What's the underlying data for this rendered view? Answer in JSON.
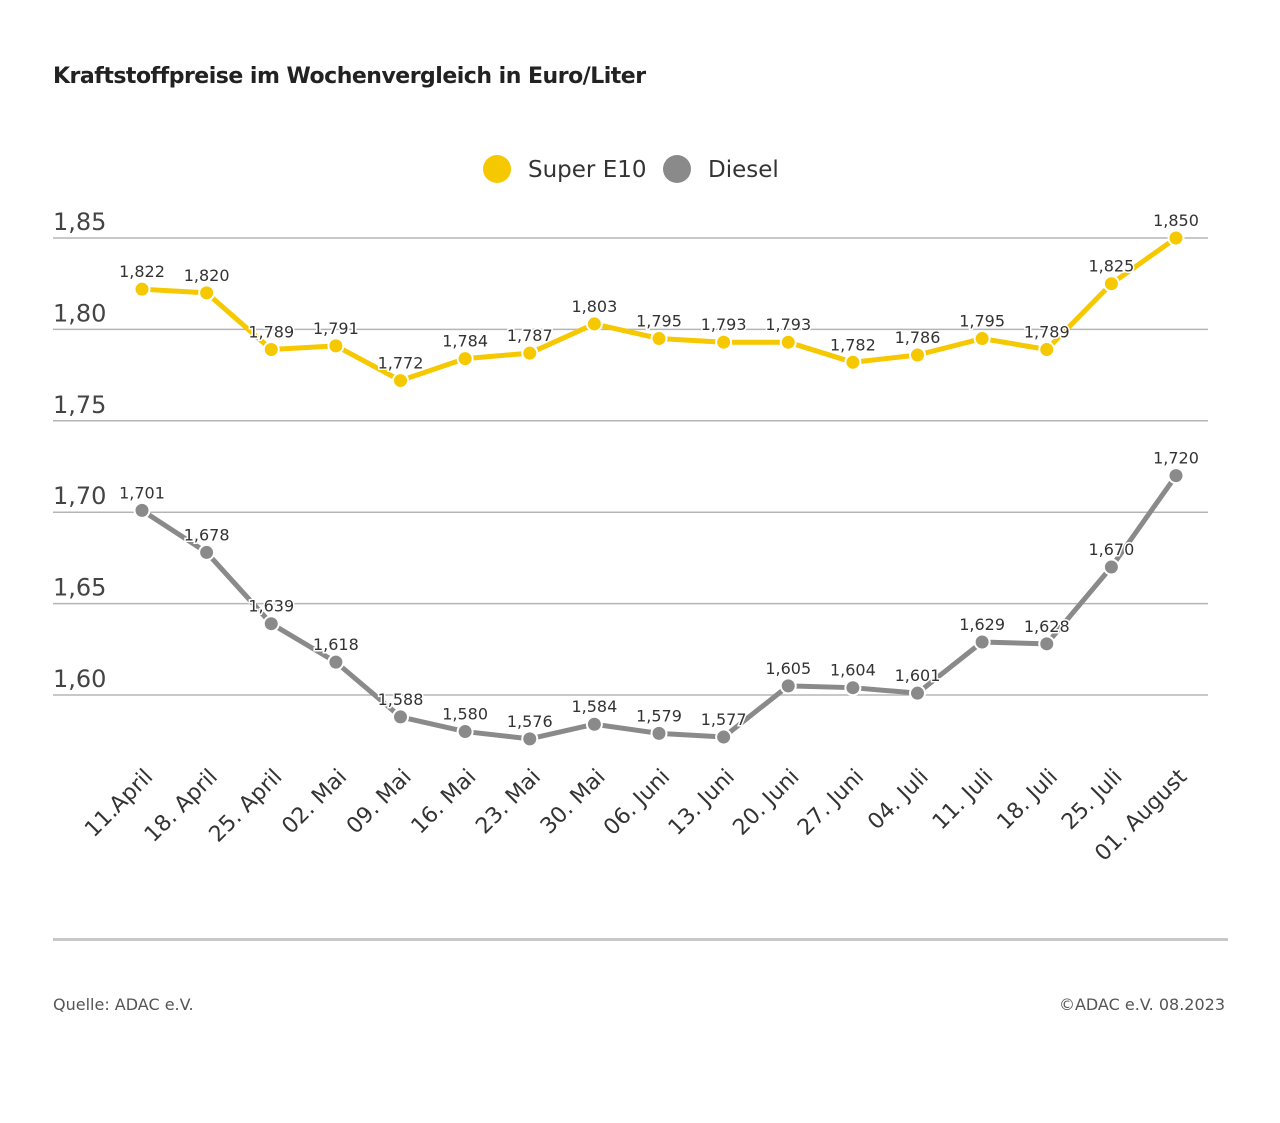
{
  "title": "Kraftstoffpreise im Wochenvergleich in Euro/Liter",
  "source": "Quelle: ADAC e.V.",
  "copyright": "©ADAC e.V. 08.2023",
  "chart_data": {
    "type": "line",
    "title": "Kraftstoffpreise im Wochenvergleich in Euro/Liter",
    "xlabel": "",
    "ylabel": "",
    "ylim": [
      1.6,
      1.85
    ],
    "yticks": [
      "1,60",
      "1,65",
      "1,70",
      "1,75",
      "1,80",
      "1,85"
    ],
    "grid": true,
    "legend": "top-center",
    "categories": [
      "11.April",
      "18. April",
      "25. April",
      "02. Mai",
      "09. Mai",
      "16. Mai",
      "23. Mai",
      "30. Mai",
      "06. Juni",
      "13. Juni",
      "20. Juni",
      "27. Juni",
      "04. Juli",
      "11. Juli",
      "18. Juli",
      "25. Juli",
      "01. August"
    ],
    "series": [
      {
        "name": "Super E10",
        "color": "#f5c800",
        "values": [
          1.822,
          1.82,
          1.789,
          1.791,
          1.772,
          1.784,
          1.787,
          1.803,
          1.795,
          1.793,
          1.793,
          1.782,
          1.786,
          1.795,
          1.789,
          1.825,
          1.85
        ]
      },
      {
        "name": "Diesel",
        "color": "#8a8a8a",
        "values": [
          1.701,
          1.678,
          1.639,
          1.618,
          1.588,
          1.58,
          1.576,
          1.584,
          1.579,
          1.577,
          1.605,
          1.604,
          1.601,
          1.629,
          1.628,
          1.67,
          1.72
        ]
      }
    ]
  }
}
